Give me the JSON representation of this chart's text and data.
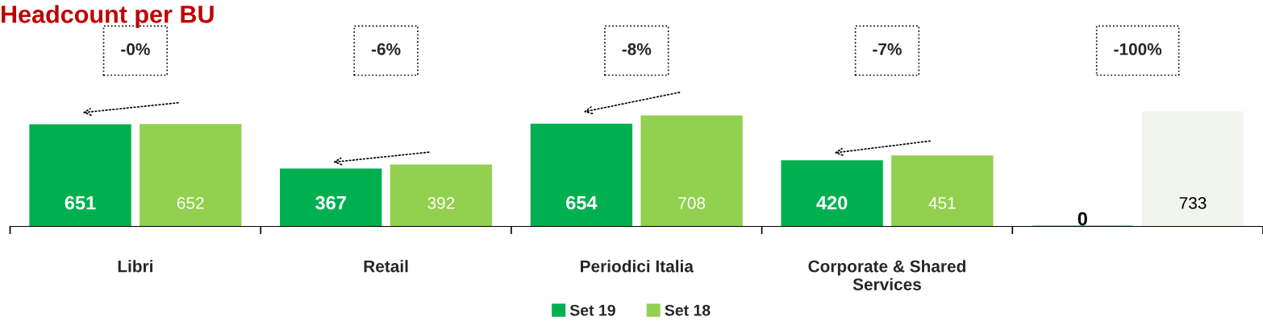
{
  "chart_data": {
    "type": "bar",
    "title": "Headcount per BU",
    "categories": [
      "Libri",
      "Retail",
      "Periodici Italia",
      "Corporate & Shared\nServices",
      null
    ],
    "series": [
      {
        "name": "Set 19",
        "color": "#00b050",
        "values": [
          651,
          367,
          654,
          420,
          0
        ]
      },
      {
        "name": "Set 18",
        "color": "#92d050",
        "colors": [
          "#92d050",
          "#92d050",
          "#92d050",
          "#92d050",
          "#f2f5ee"
        ],
        "values": [
          652,
          392,
          708,
          451,
          733
        ]
      }
    ],
    "annotations": [
      "-0%",
      "-6%",
      "-8%",
      "-7%",
      "-100%"
    ],
    "data_labels": true,
    "legend": "bottom",
    "grid": false
  }
}
